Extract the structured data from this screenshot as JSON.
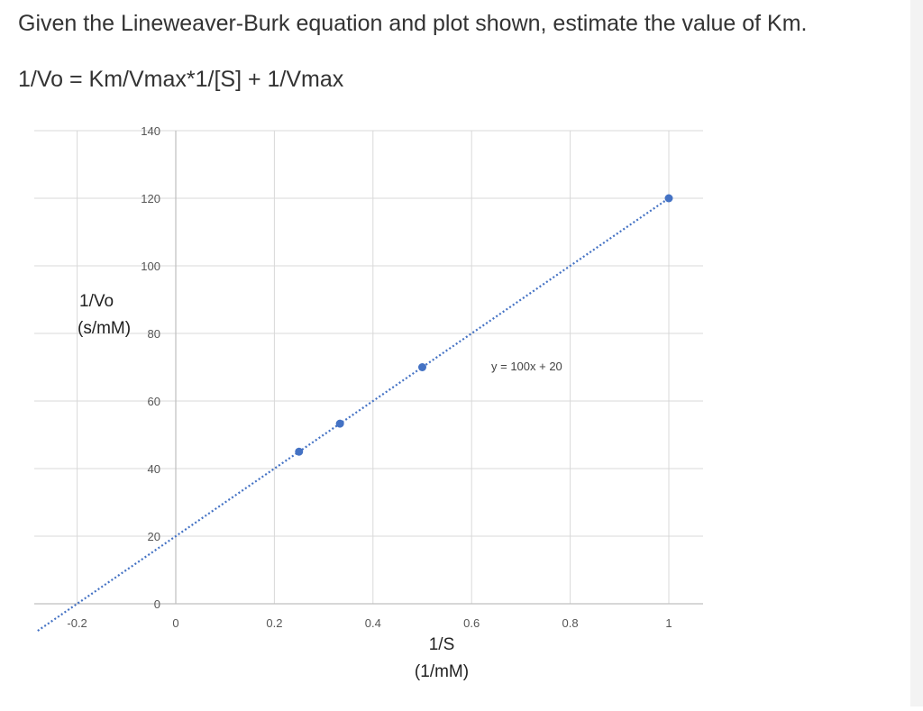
{
  "question": "Given the Lineweaver-Burk equation and plot shown, estimate the value of Km.",
  "equation": "1/Vo = Km/Vmax*1/[S] + 1/Vmax",
  "chart_data": {
    "type": "scatter",
    "x_tick_labels": [
      "-0.2",
      "0",
      "0.2",
      "0.4",
      "0.6",
      "0.8",
      "1"
    ],
    "y_tick_labels": [
      "0",
      "20",
      "40",
      "60",
      "80",
      "100",
      "120",
      "140"
    ],
    "x_ticks": [
      -0.2,
      0,
      0.2,
      0.4,
      0.6,
      0.8,
      1
    ],
    "y_ticks": [
      0,
      20,
      40,
      60,
      80,
      100,
      120,
      140
    ],
    "xlim": [
      -0.2,
      1
    ],
    "ylim": [
      0,
      140
    ],
    "ylabel_line1": "1/Vo",
    "ylabel_line2": "(s/mM)",
    "xlabel_line1": "1/S",
    "xlabel_line2": "(1/mM)",
    "points": [
      {
        "x": 0.25,
        "y": 45
      },
      {
        "x": 0.333,
        "y": 53.3
      },
      {
        "x": 0.5,
        "y": 70
      },
      {
        "x": 1,
        "y": 120
      }
    ],
    "trendline": {
      "slope": 100,
      "intercept": 20,
      "x_start": -0.28,
      "x_end": 1
    },
    "trendline_label": "y = 100x + 20",
    "grid": true,
    "point_color": "#4472c4",
    "line_color": "#4472c4"
  }
}
